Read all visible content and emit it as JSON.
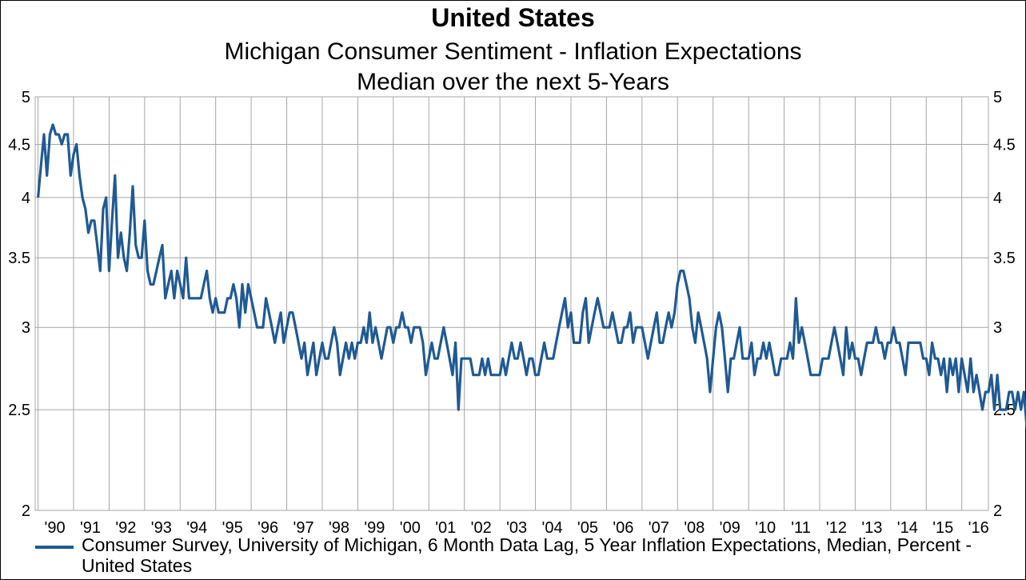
{
  "header": {
    "title": "United States",
    "subtitle": "Michigan Consumer Sentiment - Inflation Expectations",
    "subtitle2": "Median over the next 5-Years"
  },
  "legend": {
    "text": "Consumer Survey, University of Michigan, 6 Month Data Lag, 5 Year Inflation Expectations, Median, Percent - United States"
  },
  "colors": {
    "series": "#1f5a93",
    "grid": "#a6a6a6",
    "axis": "#000000"
  },
  "chart_data": {
    "type": "line",
    "title": "United States",
    "subtitle": "Michigan Consumer Sentiment - Inflation Expectations / Median over the next 5-Years",
    "y_scale": "log",
    "ylim": [
      2,
      5
    ],
    "yticks": [
      2,
      2.5,
      3,
      3.5,
      4,
      4.5,
      5
    ],
    "ytick_labels": [
      "2",
      "2.5",
      "3",
      "3.5",
      "4",
      "4.5",
      "5"
    ],
    "xlim": [
      1989.92,
      2016.75
    ],
    "xticks": [
      1990,
      1991,
      1992,
      1993,
      1994,
      1995,
      1996,
      1997,
      1998,
      1999,
      2000,
      2001,
      2002,
      2003,
      2004,
      2005,
      2006,
      2007,
      2008,
      2009,
      2010,
      2011,
      2012,
      2013,
      2014,
      2015,
      2016
    ],
    "xtick_labels": [
      "'90",
      "'91",
      "'92",
      "'93",
      "'94",
      "'95",
      "'96",
      "'97",
      "'98",
      "'99",
      "'00",
      "'01",
      "'02",
      "'03",
      "'04",
      "'05",
      "'06",
      "'07",
      "'08",
      "'09",
      "'10",
      "'11",
      "'12",
      "'13",
      "'14",
      "'15",
      "'16"
    ],
    "grid": true,
    "legend_position": "bottom",
    "last_value_label": "2.40",
    "series": [
      {
        "name": "Consumer Survey, University of Michigan, 6 Month Data Lag, 5 Year Inflation Expectations, Median, Percent - United States",
        "x_start": 1990.0,
        "step": 0.08333,
        "values": [
          4.0,
          4.3,
          4.6,
          4.2,
          4.6,
          4.7,
          4.6,
          4.6,
          4.5,
          4.6,
          4.6,
          4.2,
          4.4,
          4.5,
          4.2,
          4.0,
          3.9,
          3.7,
          3.8,
          3.8,
          3.6,
          3.4,
          3.9,
          4.0,
          3.4,
          3.8,
          4.2,
          3.5,
          3.7,
          3.5,
          3.4,
          3.7,
          4.1,
          3.6,
          3.5,
          3.5,
          3.8,
          3.4,
          3.3,
          3.3,
          3.4,
          3.5,
          3.6,
          3.2,
          3.3,
          3.4,
          3.2,
          3.4,
          3.3,
          3.2,
          3.5,
          3.2,
          3.2,
          3.2,
          3.2,
          3.2,
          3.3,
          3.4,
          3.2,
          3.1,
          3.2,
          3.1,
          3.1,
          3.1,
          3.2,
          3.2,
          3.3,
          3.2,
          3.0,
          3.3,
          3.1,
          3.3,
          3.2,
          3.1,
          3.0,
          3.0,
          3.0,
          3.2,
          3.1,
          3.0,
          2.9,
          3.0,
          3.1,
          2.9,
          3.0,
          3.1,
          3.1,
          3.0,
          2.9,
          2.8,
          2.9,
          2.7,
          2.8,
          2.9,
          2.7,
          2.8,
          2.9,
          2.8,
          2.8,
          2.9,
          3.0,
          2.9,
          2.7,
          2.8,
          2.9,
          2.8,
          2.9,
          2.8,
          2.9,
          2.9,
          3.0,
          2.9,
          3.1,
          2.9,
          3.0,
          2.9,
          2.8,
          2.9,
          3.0,
          3.0,
          2.9,
          3.0,
          3.0,
          3.1,
          3.0,
          3.0,
          2.9,
          3.0,
          3.0,
          3.0,
          2.9,
          2.7,
          2.8,
          2.9,
          2.8,
          2.8,
          2.9,
          3.0,
          2.9,
          2.8,
          2.7,
          2.9,
          2.5,
          2.8,
          2.8,
          2.8,
          2.8,
          2.7,
          2.7,
          2.7,
          2.8,
          2.7,
          2.8,
          2.7,
          2.7,
          2.7,
          2.7,
          2.8,
          2.7,
          2.8,
          2.9,
          2.8,
          2.8,
          2.9,
          2.8,
          2.7,
          2.8,
          2.8,
          2.7,
          2.7,
          2.8,
          2.9,
          2.8,
          2.8,
          2.8,
          2.9,
          3.0,
          3.1,
          3.2,
          3.0,
          3.1,
          2.9,
          2.9,
          2.9,
          3.1,
          3.2,
          2.9,
          3.0,
          3.1,
          3.2,
          3.1,
          3.0,
          3.0,
          3.0,
          3.1,
          3.0,
          2.9,
          2.9,
          3.0,
          3.0,
          3.1,
          2.9,
          3.0,
          3.0,
          3.0,
          2.9,
          2.8,
          2.9,
          3.0,
          3.1,
          2.9,
          2.9,
          3.0,
          3.1,
          3.0,
          3.1,
          3.3,
          3.4,
          3.4,
          3.3,
          3.2,
          3.0,
          2.9,
          3.1,
          3.0,
          2.9,
          2.8,
          2.6,
          2.8,
          3.0,
          3.1,
          3.0,
          2.8,
          2.6,
          2.8,
          2.8,
          2.9,
          3.0,
          2.8,
          2.8,
          2.8,
          2.9,
          2.7,
          2.8,
          2.8,
          2.9,
          2.8,
          2.9,
          2.8,
          2.7,
          2.7,
          2.8,
          2.8,
          2.8,
          2.9,
          2.8,
          3.2,
          2.9,
          3.0,
          2.9,
          2.8,
          2.7,
          2.7,
          2.7,
          2.7,
          2.8,
          2.8,
          2.8,
          2.9,
          3.0,
          2.9,
          2.8,
          2.7,
          3.0,
          2.8,
          2.9,
          2.8,
          2.8,
          2.7,
          2.8,
          2.9,
          2.9,
          2.9,
          3.0,
          2.9,
          2.9,
          2.8,
          2.9,
          2.9,
          3.0,
          2.9,
          2.9,
          2.8,
          2.7,
          2.9,
          2.9,
          2.9,
          2.9,
          2.9,
          2.8,
          2.8,
          2.7,
          2.9,
          2.8,
          2.8,
          2.7,
          2.8,
          2.6,
          2.8,
          2.7,
          2.8,
          2.6,
          2.8,
          2.7,
          2.6,
          2.8,
          2.6,
          2.7,
          2.6,
          2.5,
          2.6,
          2.6,
          2.7,
          2.5,
          2.7,
          2.5,
          2.5,
          2.5,
          2.6,
          2.6,
          2.5,
          2.6,
          2.5,
          2.6,
          2.4,
          2.4
        ]
      }
    ]
  }
}
